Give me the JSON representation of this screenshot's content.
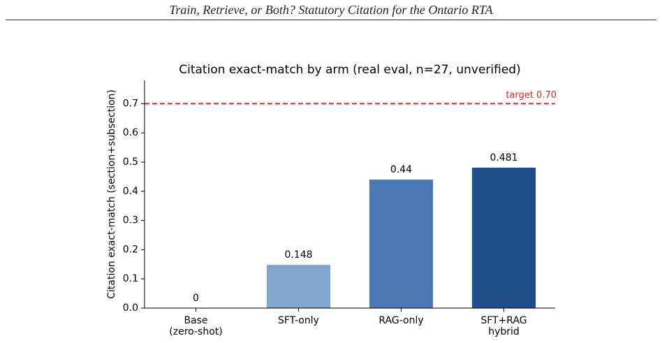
{
  "header": {
    "title": "Train, Retrieve, or Both? Statutory Citation for the Ontario RTA"
  },
  "chart_data": {
    "type": "bar",
    "title": "Citation exact-match by arm (real eval, n=27, unverified)",
    "y_label": "Citation exact-match (section+subsection)",
    "categories": [
      [
        "Base",
        "(zero-shot)"
      ],
      [
        "SFT-only"
      ],
      [
        "RAG-only"
      ],
      [
        "SFT+RAG",
        "hybrid"
      ]
    ],
    "values": [
      0,
      0.148,
      0.44,
      0.481
    ],
    "colors": [
      "#a9c6e3",
      "#7ea6cf",
      "#4a78b4",
      "#1f4e8c"
    ],
    "ylim": [
      0,
      0.78
    ],
    "yticks": [
      {
        "value": 0,
        "label": "0.0"
      },
      0.1,
      0.2,
      0.3,
      0.4,
      0.5,
      0.6,
      0.7
    ],
    "reference_lines": [
      {
        "value": 0.7,
        "label": "target 0.70",
        "color": "#d62728"
      }
    ]
  }
}
